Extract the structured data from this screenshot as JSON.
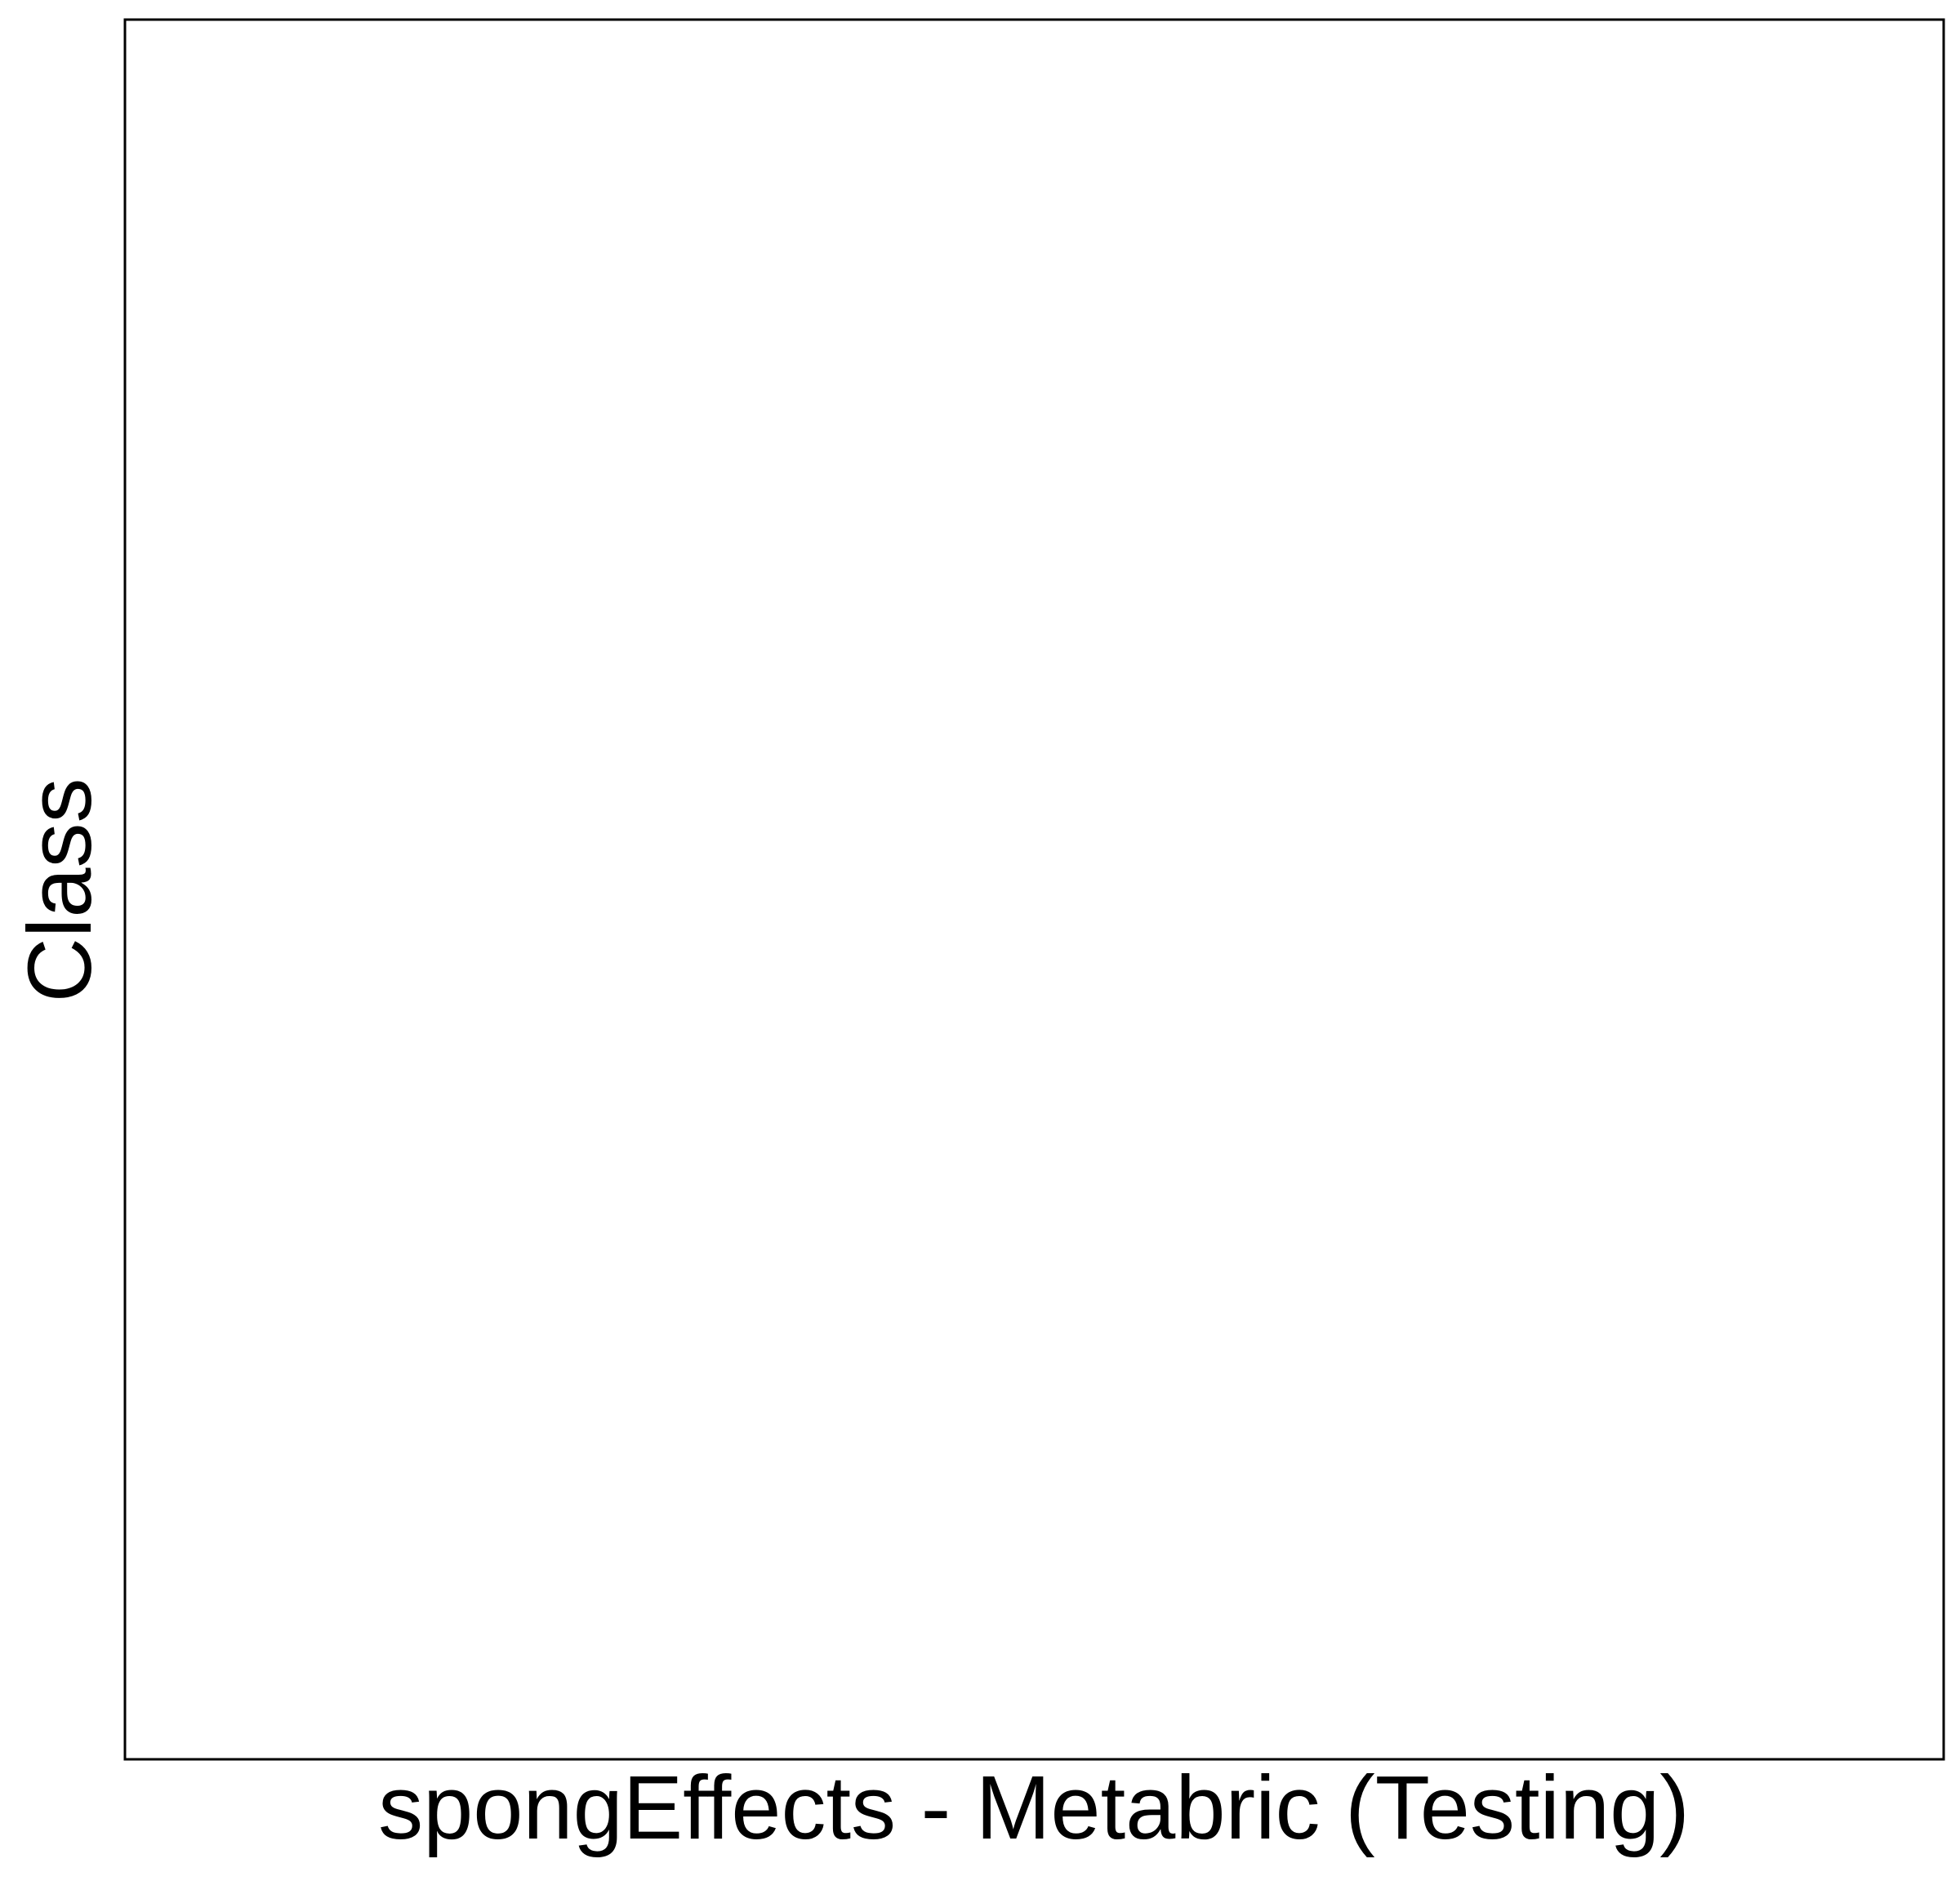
{
  "chart_data": {
    "type": "scatter",
    "title": "",
    "xlabel": "spongEffects - Metabric (Testing)",
    "ylabel": "Class",
    "series": [],
    "x_ticks": [],
    "y_ticks": [],
    "grid": false,
    "legend": "none"
  },
  "colors": {
    "background": "#ffffff",
    "panel_border": "#000000",
    "text": "#000000"
  }
}
